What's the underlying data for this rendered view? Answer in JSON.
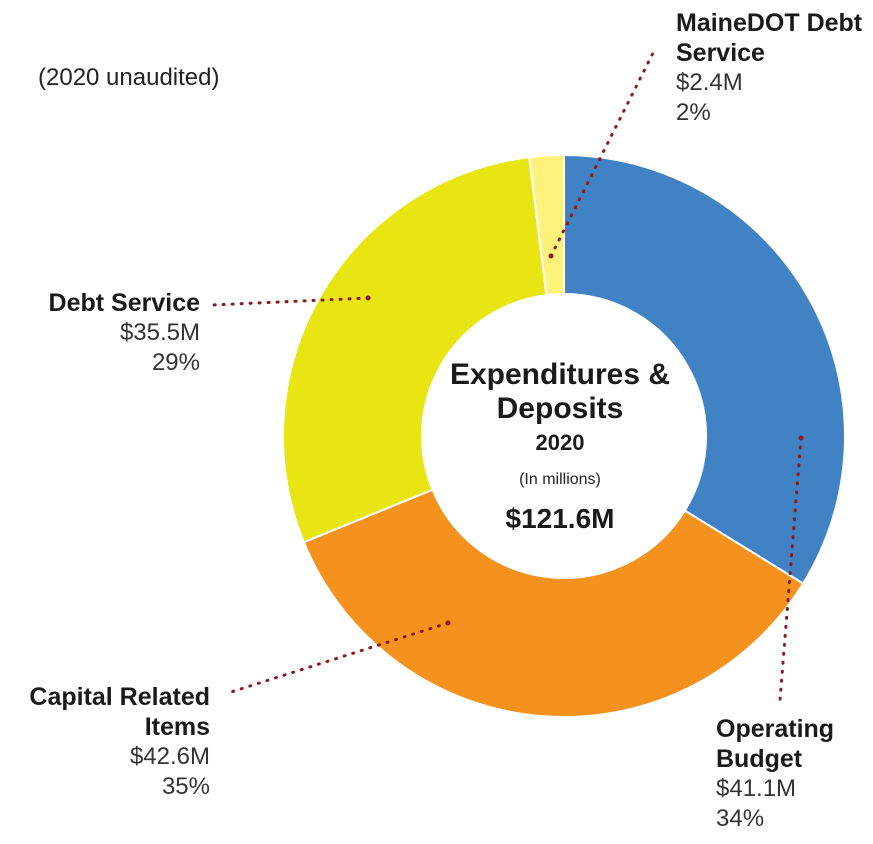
{
  "note": "(2020 unaudited)",
  "center": {
    "title": "Expenditures & Deposits",
    "year": "2020",
    "unit_note": "(In millions)",
    "total": "$121.6M"
  },
  "chart_data": {
    "type": "pie",
    "title": "Expenditures & Deposits",
    "subtitle": "2020",
    "total": 121.6,
    "units": "millions USD",
    "slices": [
      {
        "label": "Operating Budget",
        "value": 41.1,
        "value_label": "$41.1M",
        "percent": 34,
        "percent_label": "34%",
        "color": "#4182c4"
      },
      {
        "label": "Capital Related Items",
        "value": 42.6,
        "value_label": "$42.6M",
        "percent": 35,
        "percent_label": "35%",
        "color": "#f5921e"
      },
      {
        "label": "Debt Service",
        "value": 35.5,
        "value_label": "$35.5M",
        "percent": 29,
        "percent_label": "29%",
        "color": "#e8e512"
      },
      {
        "label": "MaineDOT Debt Service",
        "value": 2.4,
        "value_label": "$2.4M",
        "percent": 2,
        "percent_label": "2%",
        "color": "#fff27a"
      }
    ],
    "leader_color": "#8b1a1a"
  }
}
